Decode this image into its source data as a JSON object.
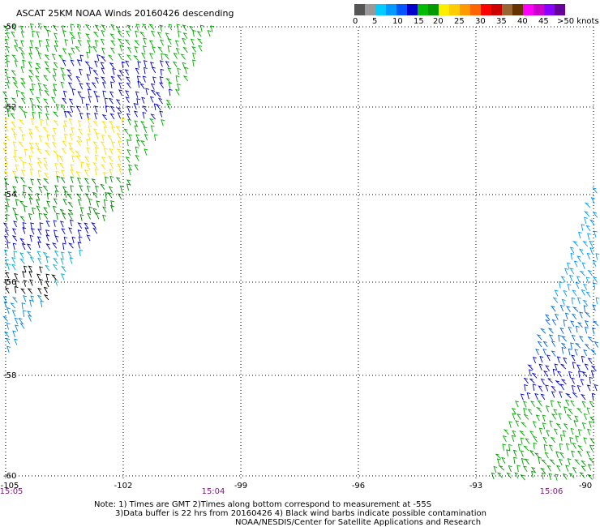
{
  "title": "ASCAT 25KM NOAA Winds 20160426 descending",
  "colorbar": {
    "colors": [
      "#555555",
      "#999999",
      "#00ccff",
      "#0099ff",
      "#0055ff",
      "#0000cc",
      "#00bb00",
      "#009900",
      "#ffee00",
      "#ffcc00",
      "#ff9900",
      "#ff6600",
      "#ff0000",
      "#cc0000",
      "#996633",
      "#663300",
      "#ff00ff",
      "#cc00cc",
      "#8800ff",
      "#660099"
    ],
    "labels": [
      "0",
      "5",
      "10",
      "15",
      "20",
      "25",
      "30",
      "35",
      "40",
      "45",
      ">50 knots"
    ]
  },
  "map": {
    "lon_range": [
      -105,
      -90
    ],
    "lat_range": [
      -60,
      -50
    ],
    "lat_labels": [
      "-50",
      "-52",
      "-54",
      "-56",
      "-58",
      "-60"
    ],
    "lon_labels": [
      "-105",
      "-102",
      "-99",
      "-96",
      "-93",
      "-90"
    ],
    "time_labels": [
      "15:05",
      "15:04",
      "15:06"
    ]
  },
  "notes": {
    "line1": "Note: 1) Times are GMT 2)Times along bottom correspond to measurement at -55S",
    "line2": "3)Data buffer is 22 hrs from 20160426 4) Black wind barbs indicate possible contamination",
    "line3": "NOAA/NESDIS/Center for Satellite Applications and Research"
  },
  "swaths": {
    "left_band_colors": [
      "#00aa00",
      "#0000cc",
      "#00aa00",
      "#ffdd00",
      "#008800",
      "#0000cc",
      "#00aacc",
      "#000000",
      "#0088dd"
    ],
    "right_band_colors": [
      "#0099ff",
      "#0066dd",
      "#0000cc",
      "#00aa00",
      "#009900"
    ]
  }
}
